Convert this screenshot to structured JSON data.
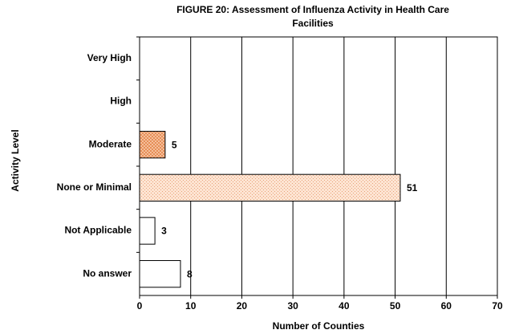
{
  "chart_data": {
    "type": "hbar",
    "title": [
      "FIGURE  20: Assessment of Influenza Activity in Health Care",
      "Facilities"
    ],
    "x_label": "Number of Counties",
    "y_label": "Activity Level",
    "categories": [
      "Very High",
      "High",
      "Moderate",
      "None or Minimal",
      "Not Applicable",
      "No answer"
    ],
    "values": [
      null,
      null,
      5,
      51,
      3,
      8
    ],
    "bar_colors": [
      "#ffffff",
      "#ffffff",
      "#f8c9a8",
      "#fde4d2",
      "#ffffff",
      "#ffffff"
    ],
    "bar_patterns": [
      "none",
      "none",
      "crosshatch",
      "dots",
      "none",
      "none"
    ],
    "xlim": [
      0,
      70
    ],
    "xticks": [
      0,
      10,
      20,
      30,
      40,
      50,
      60,
      70
    ],
    "grid": true
  }
}
